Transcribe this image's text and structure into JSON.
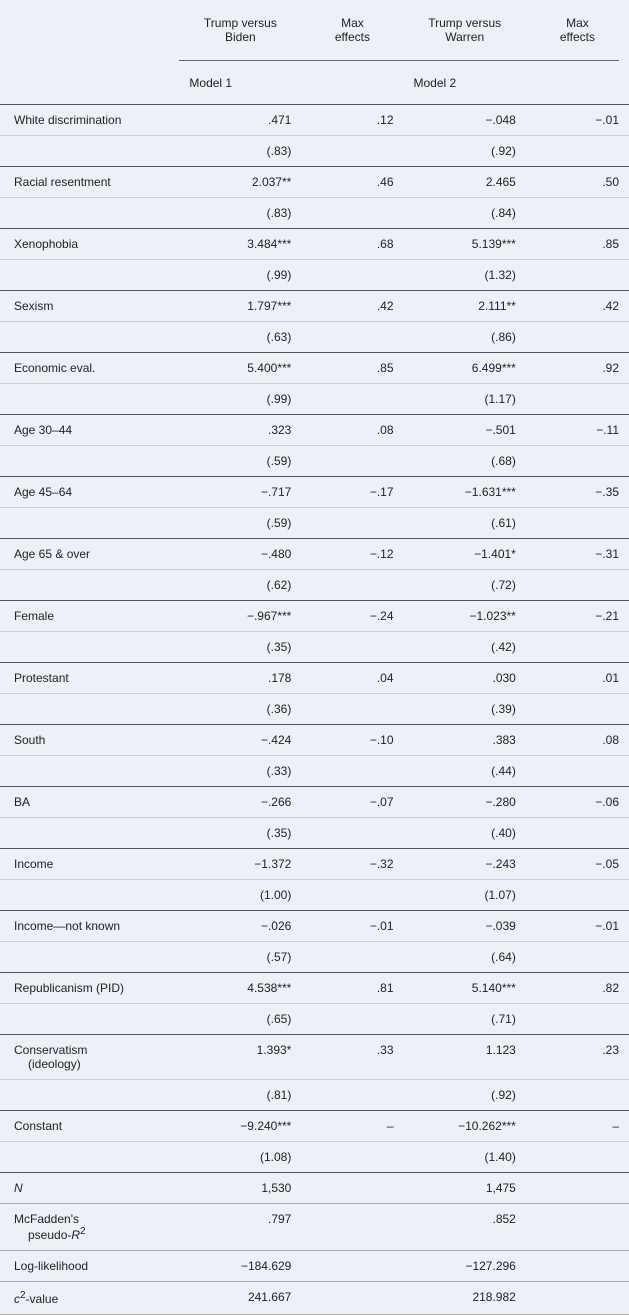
{
  "headers": {
    "col1": "Trump versus\nBiden",
    "col2": "Max\neffects",
    "col3": "Trump versus\nWarren",
    "col4": "Max\neffects",
    "model1": "Model 1",
    "model2": "Model 2"
  },
  "rows": [
    {
      "label": "White discrimination",
      "c1": ".471",
      "c2": ".12",
      "c3": "−.048",
      "c4": "−.01",
      "se1": "(.83)",
      "se3": "(.92)",
      "breakHeavy": true
    },
    {
      "label": "Racial resentment",
      "c1": "2.037**",
      "c2": ".46",
      "c3": "2.465",
      "c4": ".50",
      "se1": "(.83)",
      "se3": "(.84)",
      "breakHeavy": true
    },
    {
      "label": "Xenophobia",
      "c1": "3.484***",
      "c2": ".68",
      "c3": "5.139***",
      "c4": ".85",
      "se1": "(.99)",
      "se3": "(1.32)",
      "breakHeavy": true
    },
    {
      "label": "Sexism",
      "c1": "1.797***",
      "c2": ".42",
      "c3": "2.111**",
      "c4": ".42",
      "se1": "(.63)",
      "se3": "(.86)",
      "breakHeavy": true
    },
    {
      "label": "Economic eval.",
      "c1": "5.400***",
      "c2": ".85",
      "c3": "6.499***",
      "c4": ".92",
      "se1": "(.99)",
      "se3": "(1.17)",
      "breakHeavy": true
    },
    {
      "label": "Age 30–44",
      "c1": ".323",
      "c2": ".08",
      "c3": "−.501",
      "c4": "−.11",
      "se1": "(.59)",
      "se3": "(.68)",
      "breakHeavy": true
    },
    {
      "label": "Age 45–64",
      "c1": "−.717",
      "c2": "−.17",
      "c3": "−1.631***",
      "c4": "−.35",
      "se1": "(.59)",
      "se3": "(.61)",
      "breakHeavy": true
    },
    {
      "label": "Age 65 & over",
      "c1": "−.480",
      "c2": "−.12",
      "c3": "−1.401*",
      "c4": "−.31",
      "se1": "(.62)",
      "se3": "(.72)",
      "breakHeavy": true
    },
    {
      "label": "Female",
      "c1": "−.967***",
      "c2": "−.24",
      "c3": "−1.023**",
      "c4": "−.21",
      "se1": "(.35)",
      "se3": "(.42)",
      "breakHeavy": true
    },
    {
      "label": "Protestant",
      "c1": ".178",
      "c2": ".04",
      "c3": ".030",
      "c4": ".01",
      "se1": "(.36)",
      "se3": "(.39)",
      "breakHeavy": true
    },
    {
      "label": "South",
      "c1": "−.424",
      "c2": "−.10",
      "c3": ".383",
      "c4": ".08",
      "se1": "(.33)",
      "se3": "(.44)",
      "breakHeavy": true
    },
    {
      "label": "BA",
      "c1": "−.266",
      "c2": "−.07",
      "c3": "−.280",
      "c4": "−.06",
      "se1": "(.35)",
      "se3": "(.40)",
      "breakHeavy": true
    },
    {
      "label": "Income",
      "c1": "−1.372",
      "c2": "−.32",
      "c3": "−.243",
      "c4": "−.05",
      "se1": "(1.00)",
      "se3": "(1.07)",
      "breakHeavy": true
    },
    {
      "label": "Income—not known",
      "c1": "−.026",
      "c2": "−.01",
      "c3": "−.039",
      "c4": "−.01",
      "se1": "(.57)",
      "se3": "(.64)",
      "breakHeavy": true
    },
    {
      "label": "Republicanism (PID)",
      "c1": "4.538***",
      "c2": ".81",
      "c3": "5.140***",
      "c4": ".82",
      "se1": "(.65)",
      "se3": "(.71)",
      "breakHeavy": true
    },
    {
      "label": "Conservatism (ideology)",
      "c1": "1.393*",
      "c2": ".33",
      "c3": "1.123",
      "c4": ".23",
      "se1": "(.81)",
      "se3": "(.92)",
      "breakHeavy": true,
      "multiline": true,
      "label2": "(ideology)",
      "label1": "Conservatism"
    },
    {
      "label": "Constant",
      "c1": "−9.240***",
      "c2": "–",
      "c3": "−10.262***",
      "c4": "–",
      "se1": "(1.08)",
      "se3": "(1.40)",
      "breakHeavy": true
    }
  ],
  "footer": [
    {
      "labelHtml": "N",
      "italic": true,
      "c1": "1,530",
      "c3": "1,475"
    },
    {
      "labelHtml": "McFadden's pseudo-R²",
      "multiline": true,
      "label1": "McFadden's",
      "label2": "pseudo-",
      "suffixItalic": "R",
      "sup": "2",
      "c1": ".797",
      "c3": ".852"
    },
    {
      "labelHtml": "Log-likelihood",
      "c1": "−184.629",
      "c3": "−127.296"
    },
    {
      "labelHtml": "c²-value",
      "chi": true,
      "c1": "241.667",
      "c3": "218.982"
    }
  ],
  "style": {
    "background": "#edf0f6",
    "fontSize": 12,
    "textColor": "#222",
    "ruleHeavy": "#555",
    "ruleLight": "#aaa"
  }
}
